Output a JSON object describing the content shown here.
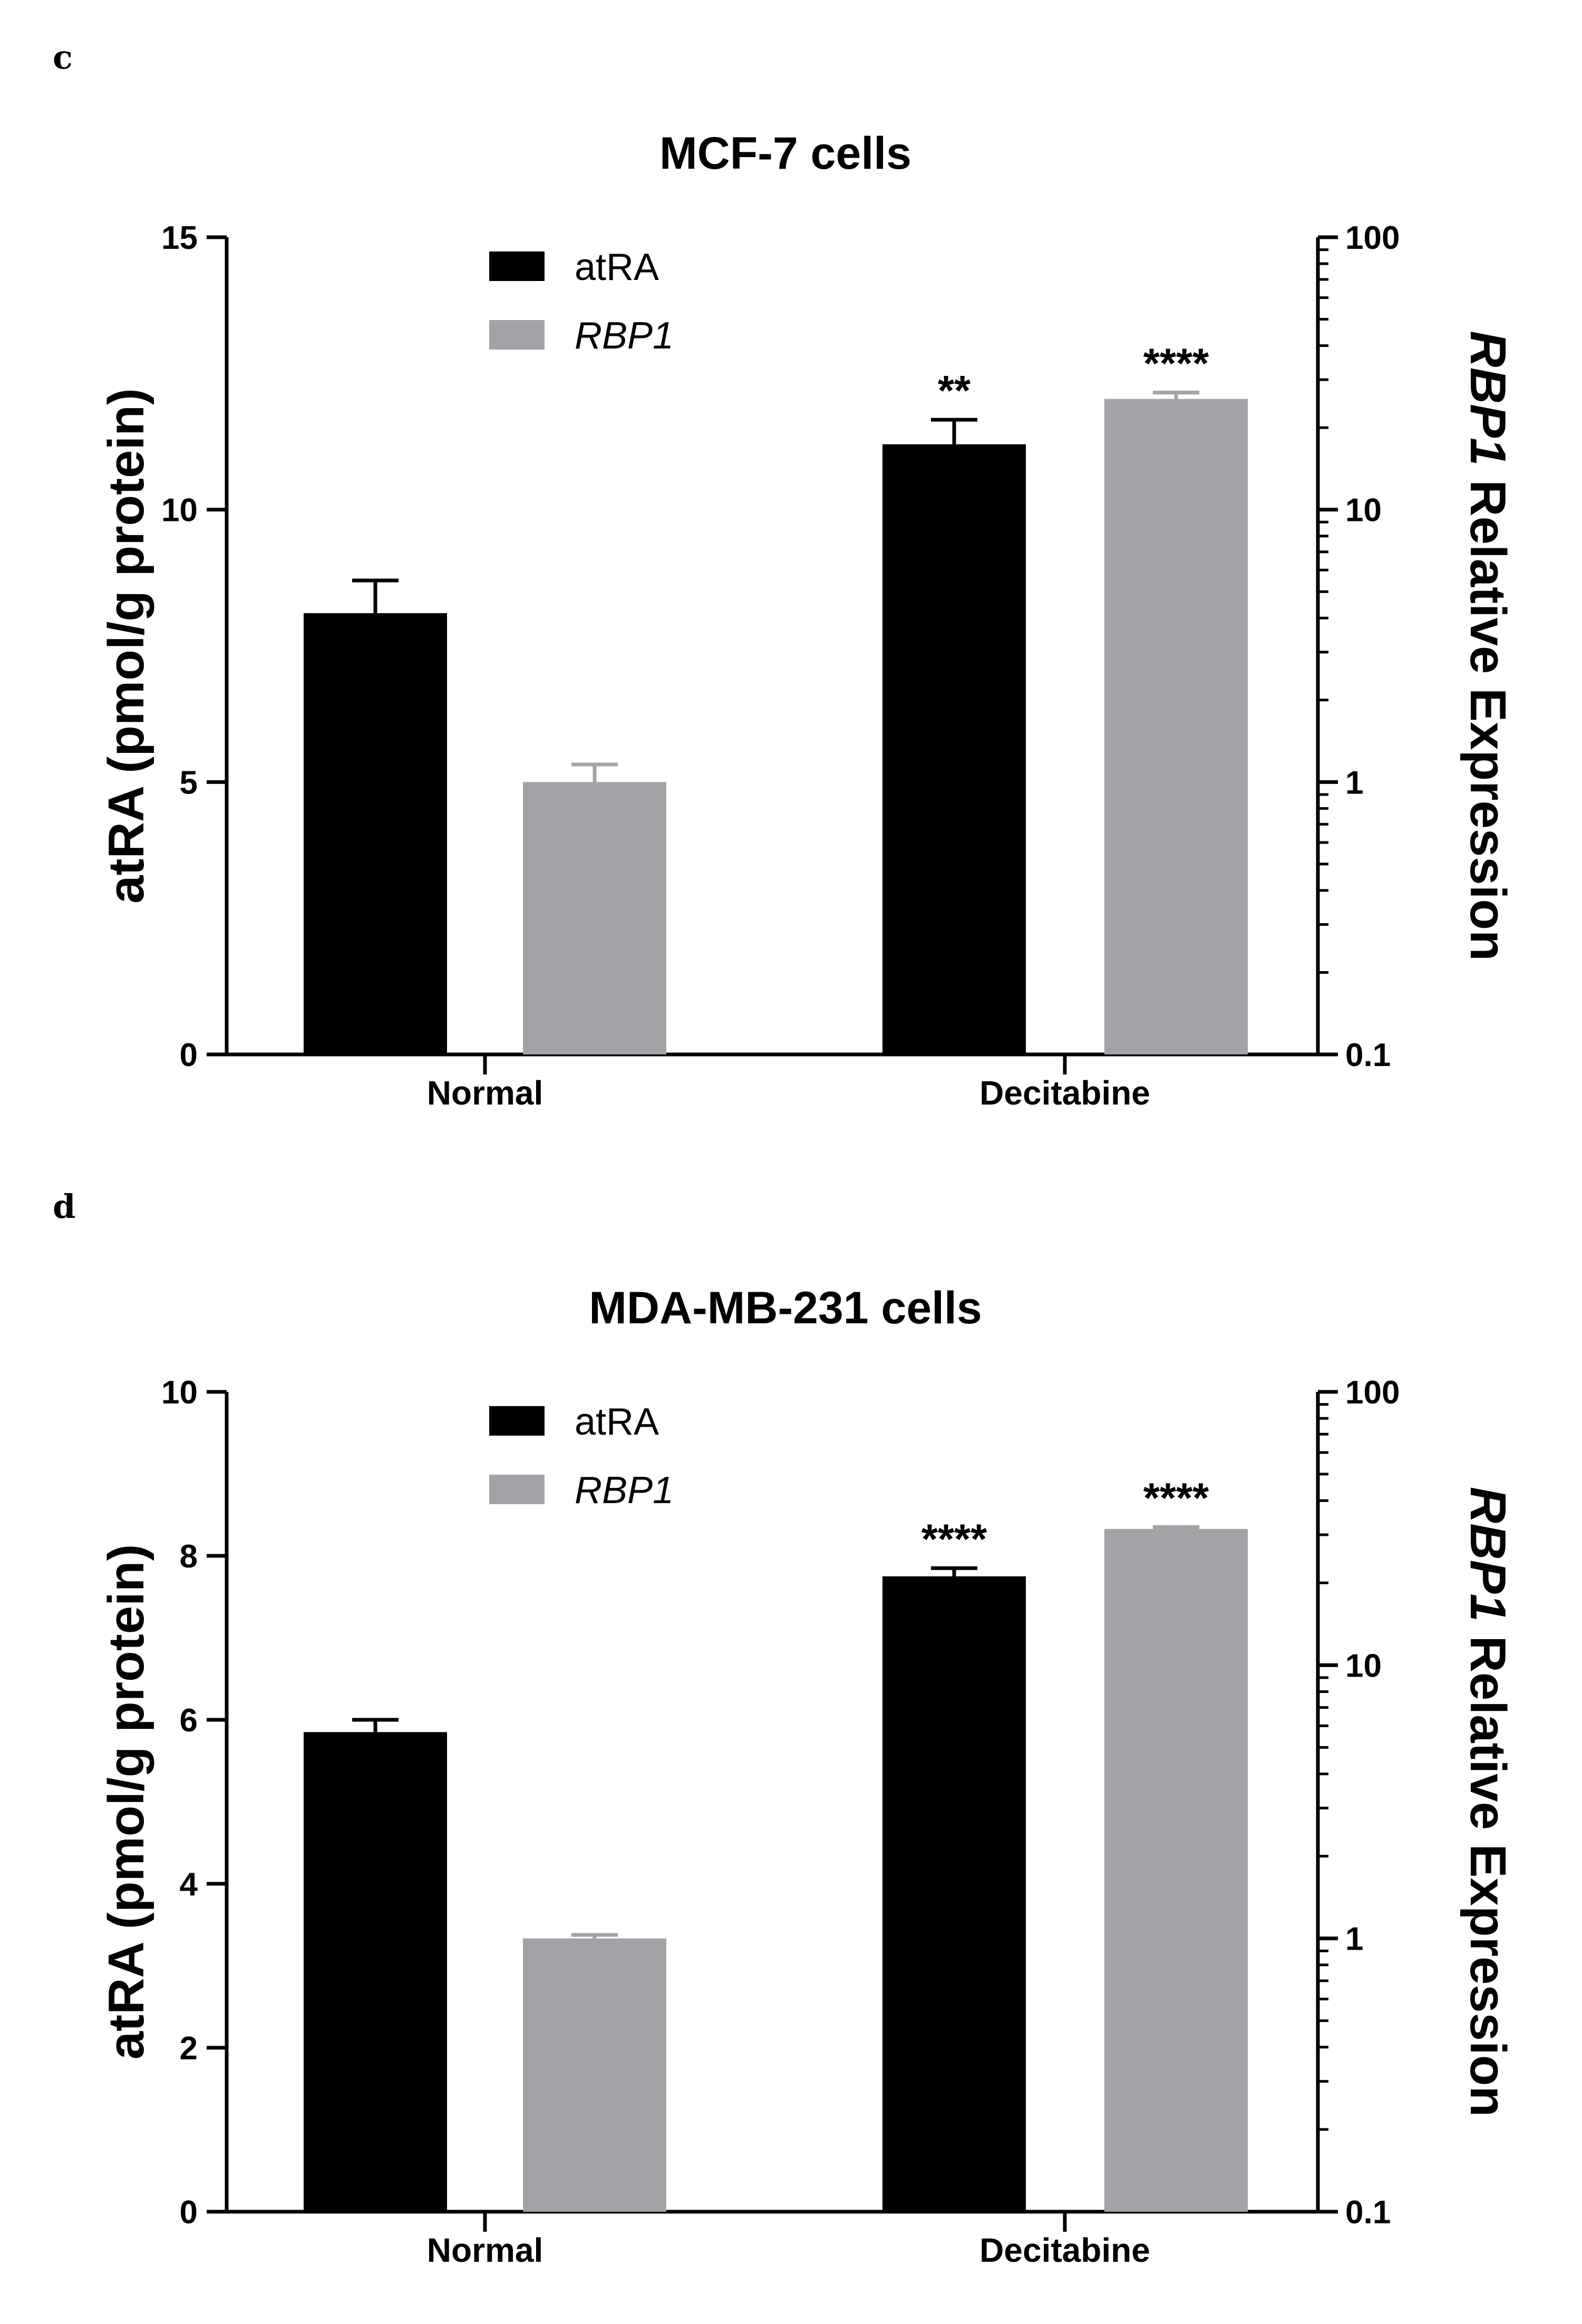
{
  "colors": {
    "atra": "#000000",
    "rbp1": "#a3a3a7",
    "axis": "#000000"
  },
  "chart_data": [
    {
      "panel": "c",
      "type": "bar",
      "title": "MCF-7 cells",
      "categories": [
        "Normal",
        "Decitabine"
      ],
      "ylabel": "atRA (pmol/g protein)",
      "ylim": [
        0,
        15
      ],
      "yticks": [
        0,
        5,
        10,
        15
      ],
      "y2label_italic": "RBP1",
      "y2label_rest": " Relative Expression",
      "y2scale": "log",
      "y2lim": [
        0.1,
        100
      ],
      "y2ticks": [
        0.1,
        1,
        10,
        100
      ],
      "y2tick_labels": [
        "0.1",
        "1",
        "10",
        "100"
      ],
      "series": [
        {
          "name": "atRA",
          "axis": "left",
          "italic": false,
          "values": [
            8.1,
            11.2
          ],
          "errors": [
            0.6,
            0.45
          ],
          "significance": [
            "",
            "**"
          ]
        },
        {
          "name": "RBP1",
          "axis": "right",
          "italic": true,
          "values": [
            1.0,
            25.5
          ],
          "errors": [
            0.16,
            1.4
          ],
          "significance": [
            "",
            "****"
          ]
        }
      ]
    },
    {
      "panel": "d",
      "type": "bar",
      "title": "MDA-MB-231 cells",
      "categories": [
        "Normal",
        "Decitabine"
      ],
      "ylabel": "atRA (pmol/g protein)",
      "ylim": [
        0,
        10
      ],
      "yticks": [
        0,
        2,
        4,
        6,
        8,
        10
      ],
      "y2label_italic": "RBP1",
      "y2label_rest": " Relative Expression",
      "y2scale": "log",
      "y2lim": [
        0.1,
        100
      ],
      "y2ticks": [
        0.1,
        1,
        10,
        100
      ],
      "y2tick_labels": [
        "0.1",
        "1",
        "10",
        "100"
      ],
      "series": [
        {
          "name": "atRA",
          "axis": "left",
          "italic": false,
          "values": [
            5.85,
            7.75
          ],
          "errors": [
            0.15,
            0.1
          ],
          "significance": [
            "",
            "****"
          ]
        },
        {
          "name": "RBP1",
          "axis": "right",
          "italic": true,
          "values": [
            1.0,
            31.5
          ],
          "errors": [
            0.03,
            0.5
          ],
          "significance": [
            "",
            "****"
          ]
        }
      ]
    }
  ]
}
